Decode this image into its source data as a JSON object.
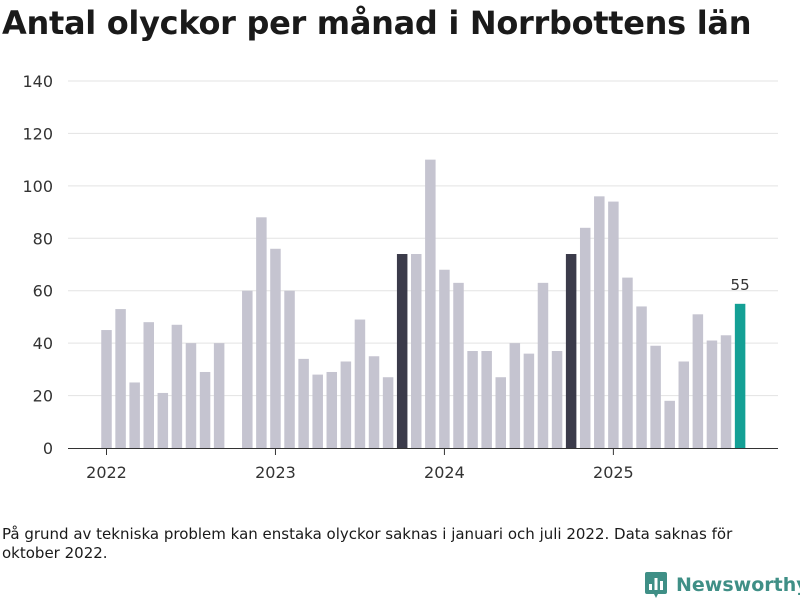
{
  "title": "Antal olyckor per månad i Norrbottens län",
  "footnote": "På grund av tekniska problem kan enstaka olyckor saknas i januari och juli 2022. Data saknas för oktober 2022.",
  "brand": {
    "name": "Newsworthy",
    "icon": "bar-chart-icon"
  },
  "colors": {
    "default": "#c5c4d0",
    "highlight": "#3b3b4a",
    "latest": "#14a095"
  },
  "chart_data": {
    "type": "bar",
    "title": "Antal olyckor per månad i Norrbottens län",
    "xlabel": "",
    "ylabel": "",
    "ylim": [
      0,
      140
    ],
    "yticks": [
      0,
      20,
      40,
      60,
      80,
      100,
      120,
      140
    ],
    "xticks": [
      "2022",
      "2023",
      "2024",
      "2025"
    ],
    "months": [
      "2022-01",
      "2022-02",
      "2022-03",
      "2022-04",
      "2022-05",
      "2022-06",
      "2022-07",
      "2022-08",
      "2022-09",
      "2022-10",
      "2022-11",
      "2022-12",
      "2023-01",
      "2023-02",
      "2023-03",
      "2023-04",
      "2023-05",
      "2023-06",
      "2023-07",
      "2023-08",
      "2023-09",
      "2023-10",
      "2023-11",
      "2023-12",
      "2024-01",
      "2024-02",
      "2024-03",
      "2024-04",
      "2024-05",
      "2024-06",
      "2024-07",
      "2024-08",
      "2024-09",
      "2024-10",
      "2024-11",
      "2024-12",
      "2025-01",
      "2025-02",
      "2025-03",
      "2025-04",
      "2025-05",
      "2025-06",
      "2025-07",
      "2025-08",
      "2025-09",
      "2025-10"
    ],
    "values": [
      45,
      53,
      25,
      48,
      21,
      47,
      40,
      29,
      40,
      null,
      60,
      88,
      76,
      60,
      34,
      28,
      29,
      33,
      49,
      35,
      27,
      74,
      74,
      110,
      68,
      63,
      37,
      37,
      27,
      40,
      36,
      63,
      37,
      74,
      84,
      96,
      94,
      65,
      54,
      39,
      18,
      33,
      51,
      41,
      43,
      55
    ],
    "highlight_months": [
      "2023-10",
      "2024-10",
      "2025-10"
    ],
    "latest": {
      "month": "2025-10",
      "label": "55"
    }
  }
}
